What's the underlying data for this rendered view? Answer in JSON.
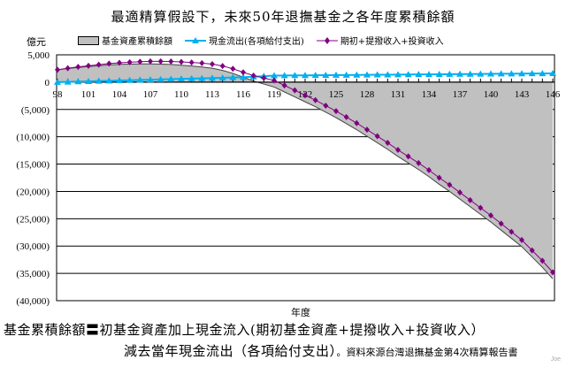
{
  "chart_data": {
    "type": "line",
    "title": "最適精算假設下，未來50年退撫基金之各年度累積餘額",
    "ylabel": "億元",
    "xlabel": "年度",
    "ylim": [
      -40000,
      5000
    ],
    "yticks": [
      5000,
      0,
      -5000,
      -10000,
      -15000,
      -20000,
      -25000,
      -30000,
      -35000,
      -40000
    ],
    "ytick_labels": [
      "5,000",
      "0",
      "(5,000)",
      "(10,000)",
      "(15,000)",
      "(20,000)",
      "(25,000)",
      "(30,000)",
      "(35,000)",
      "(40,000)"
    ],
    "xtick_labels": [
      "98",
      "101",
      "104",
      "107",
      "110",
      "113",
      "116",
      "119",
      "122",
      "125",
      "128",
      "131",
      "134",
      "137",
      "140",
      "143",
      "146"
    ],
    "grid": true,
    "legend_placement": "top",
    "x": [
      98,
      99,
      100,
      101,
      102,
      103,
      104,
      105,
      106,
      107,
      108,
      109,
      110,
      111,
      112,
      113,
      114,
      115,
      116,
      117,
      118,
      119,
      120,
      121,
      122,
      123,
      124,
      125,
      126,
      127,
      128,
      129,
      130,
      131,
      132,
      133,
      134,
      135,
      136,
      137,
      138,
      139,
      140,
      141,
      142,
      143,
      144,
      145,
      146
    ],
    "series": [
      {
        "name": "基金資產累積餘額",
        "kind": "area",
        "color": "#c0c0c0",
        "values": [
          2260,
          2500,
          2700,
          2850,
          3000,
          3150,
          3250,
          3300,
          3350,
          3350,
          3300,
          3230,
          3100,
          2950,
          2780,
          2550,
          2150,
          1600,
          900,
          200,
          -350,
          -900,
          -1800,
          -2700,
          -3600,
          -4500,
          -5500,
          -6500,
          -7600,
          -8700,
          -9900,
          -11100,
          -12300,
          -13600,
          -14800,
          -16000,
          -17300,
          -18700,
          -20000,
          -21400,
          -22800,
          -24200,
          -25600,
          -27100,
          -28600,
          -30100,
          -32000,
          -33900,
          -36000
        ]
      },
      {
        "name": "現金流出(各項給付支出)",
        "kind": "line",
        "marker": "triangle",
        "color": "#00b0f0",
        "values": [
          0,
          50,
          100,
          150,
          200,
          250,
          300,
          350,
          400,
          450,
          500,
          550,
          600,
          650,
          700,
          750,
          800,
          850,
          900,
          1000,
          1100,
          1200,
          1215,
          1230,
          1245,
          1260,
          1275,
          1290,
          1305,
          1320,
          1335,
          1350,
          1365,
          1380,
          1395,
          1410,
          1425,
          1440,
          1455,
          1470,
          1485,
          1500,
          1515,
          1530,
          1545,
          1560,
          1575,
          1590,
          1605
        ]
      },
      {
        "name": "期初+提撥收入+投資收入",
        "kind": "line",
        "marker": "diamond",
        "color": "#800080",
        "values": [
          2260,
          2550,
          2800,
          3000,
          3200,
          3400,
          3550,
          3650,
          3750,
          3800,
          3800,
          3780,
          3700,
          3600,
          3480,
          3300,
          2950,
          2450,
          1800,
          1200,
          750,
          300,
          -600,
          -1500,
          -2400,
          -3300,
          -4300,
          -5300,
          -6400,
          -7500,
          -8700,
          -9900,
          -11100,
          -12400,
          -13600,
          -14800,
          -16100,
          -17500,
          -18800,
          -20200,
          -21600,
          -23000,
          -24400,
          -25900,
          -27400,
          -28900,
          -30800,
          -32700,
          -34800
        ]
      }
    ]
  },
  "notes": {
    "line1": "基金累積餘額〓初基金資產加上現金流入(期初基金資產+提撥收入+投資收入）",
    "line2": "減去當年現金流出（各項給付支出）",
    "source": "。資料來源台灣退撫基金第4次精算報告書",
    "signature": "Joe"
  }
}
